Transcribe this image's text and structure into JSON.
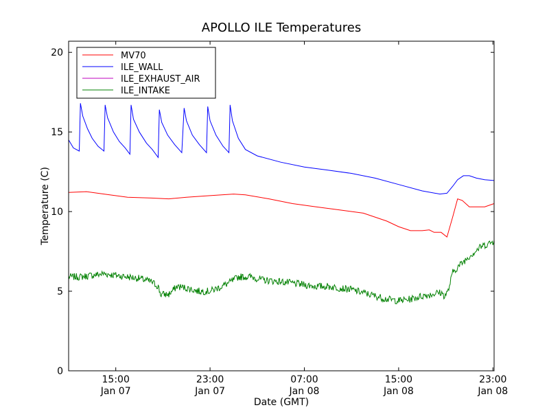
{
  "chart_data": {
    "type": "line",
    "title": "APOLLO ILE Temperatures",
    "xlabel": "Date (GMT)",
    "ylabel": "Temperature (C)",
    "x_unit": "hours since Jan 07 00:00 GMT",
    "xlim": [
      11,
      47.1
    ],
    "ylim": [
      0,
      20.7
    ],
    "yticks": [
      0,
      5,
      10,
      15,
      20
    ],
    "xticks": [
      {
        "x": 15,
        "time": "15:00",
        "date": "Jan 07"
      },
      {
        "x": 23,
        "time": "23:00",
        "date": "Jan 07"
      },
      {
        "x": 31,
        "time": "07:00",
        "date": "Jan 08"
      },
      {
        "x": 39,
        "time": "15:00",
        "date": "Jan 08"
      },
      {
        "x": 47,
        "time": "23:00",
        "date": "Jan 08"
      }
    ],
    "grid": false,
    "legend_position": "top-left",
    "series": [
      {
        "name": "MV70",
        "color": "#ff0000",
        "points": [
          [
            11,
            11.2
          ],
          [
            12.5,
            11.25
          ],
          [
            14,
            11.1
          ],
          [
            16,
            10.9
          ],
          [
            18,
            10.85
          ],
          [
            19.5,
            10.8
          ],
          [
            21,
            10.9
          ],
          [
            23,
            11.0
          ],
          [
            25,
            11.1
          ],
          [
            26,
            11.05
          ],
          [
            28,
            10.8
          ],
          [
            30,
            10.5
          ],
          [
            32,
            10.3
          ],
          [
            34,
            10.1
          ],
          [
            36,
            9.9
          ],
          [
            38,
            9.4
          ],
          [
            39,
            9.05
          ],
          [
            40,
            8.8
          ],
          [
            41,
            8.8
          ],
          [
            41.6,
            8.85
          ],
          [
            42,
            8.7
          ],
          [
            42.6,
            8.7
          ],
          [
            43.1,
            8.4
          ],
          [
            43.6,
            9.7
          ],
          [
            44,
            10.8
          ],
          [
            44.4,
            10.7
          ],
          [
            45,
            10.3
          ],
          [
            45.6,
            10.3
          ],
          [
            46.3,
            10.3
          ],
          [
            47.1,
            10.5
          ]
        ]
      },
      {
        "name": "ILE_WALL",
        "color": "#0000ff",
        "points": [
          [
            11,
            14.5
          ],
          [
            11.4,
            14.0
          ],
          [
            11.9,
            13.8
          ],
          [
            12.0,
            16.8
          ],
          [
            12.2,
            16.0
          ],
          [
            12.6,
            15.2
          ],
          [
            13,
            14.6
          ],
          [
            13.5,
            14.1
          ],
          [
            14,
            13.8
          ],
          [
            14.1,
            16.7
          ],
          [
            14.3,
            15.9
          ],
          [
            14.8,
            15.0
          ],
          [
            15.3,
            14.4
          ],
          [
            15.8,
            14.0
          ],
          [
            16.2,
            13.6
          ],
          [
            16.3,
            16.7
          ],
          [
            16.5,
            15.8
          ],
          [
            17,
            15.0
          ],
          [
            17.6,
            14.3
          ],
          [
            18.1,
            13.9
          ],
          [
            18.6,
            13.4
          ],
          [
            18.7,
            16.4
          ],
          [
            18.9,
            15.6
          ],
          [
            19.4,
            14.8
          ],
          [
            20,
            14.2
          ],
          [
            20.6,
            13.7
          ],
          [
            20.8,
            16.5
          ],
          [
            21,
            15.7
          ],
          [
            21.5,
            14.8
          ],
          [
            22.1,
            14.2
          ],
          [
            22.7,
            13.7
          ],
          [
            22.8,
            16.6
          ],
          [
            23,
            15.7
          ],
          [
            23.5,
            14.8
          ],
          [
            24.1,
            14.1
          ],
          [
            24.6,
            13.7
          ],
          [
            24.7,
            16.7
          ],
          [
            24.9,
            15.7
          ],
          [
            25.4,
            14.6
          ],
          [
            26,
            13.9
          ],
          [
            27,
            13.5
          ],
          [
            29,
            13.1
          ],
          [
            31,
            12.8
          ],
          [
            33,
            12.6
          ],
          [
            35,
            12.4
          ],
          [
            37,
            12.1
          ],
          [
            39,
            11.7
          ],
          [
            41,
            11.3
          ],
          [
            42.5,
            11.1
          ],
          [
            43.1,
            11.15
          ],
          [
            43.6,
            11.6
          ],
          [
            44,
            12.0
          ],
          [
            44.5,
            12.25
          ],
          [
            45,
            12.25
          ],
          [
            45.6,
            12.1
          ],
          [
            46.3,
            12.0
          ],
          [
            47.1,
            11.95
          ]
        ]
      },
      {
        "name": "ILE_EXHAUST_AIR",
        "color": "#bf00bf",
        "points": []
      },
      {
        "name": "ILE_INTAKE",
        "color": "#008000",
        "points": [
          [
            11,
            5.9
          ],
          [
            12,
            5.9
          ],
          [
            13,
            6.0
          ],
          [
            14,
            6.1
          ],
          [
            15,
            6.0
          ],
          [
            16,
            5.9
          ],
          [
            17,
            5.8
          ],
          [
            18,
            5.6
          ],
          [
            18.6,
            5.3
          ],
          [
            18.8,
            4.8
          ],
          [
            19.5,
            4.8
          ],
          [
            20.2,
            5.3
          ],
          [
            21,
            5.2
          ],
          [
            22,
            5.0
          ],
          [
            23,
            5.0
          ],
          [
            24,
            5.3
          ],
          [
            24.8,
            5.6
          ],
          [
            25.4,
            5.9
          ],
          [
            26.5,
            5.9
          ],
          [
            27.5,
            5.7
          ],
          [
            29,
            5.6
          ],
          [
            30,
            5.5
          ],
          [
            31,
            5.4
          ],
          [
            32,
            5.3
          ],
          [
            33,
            5.3
          ],
          [
            34,
            5.2
          ],
          [
            35,
            5.1
          ],
          [
            36,
            4.9
          ],
          [
            37,
            4.7
          ],
          [
            38,
            4.5
          ],
          [
            39,
            4.4
          ],
          [
            40,
            4.5
          ],
          [
            41,
            4.7
          ],
          [
            41.8,
            4.8
          ],
          [
            42.3,
            4.9
          ],
          [
            42.6,
            4.9
          ],
          [
            42.9,
            4.7
          ],
          [
            43.2,
            5.0
          ],
          [
            43.6,
            6.2
          ],
          [
            44,
            6.5
          ],
          [
            45,
            7.2
          ],
          [
            46,
            7.8
          ],
          [
            47,
            8.1
          ],
          [
            47.1,
            8.2
          ]
        ]
      }
    ]
  }
}
